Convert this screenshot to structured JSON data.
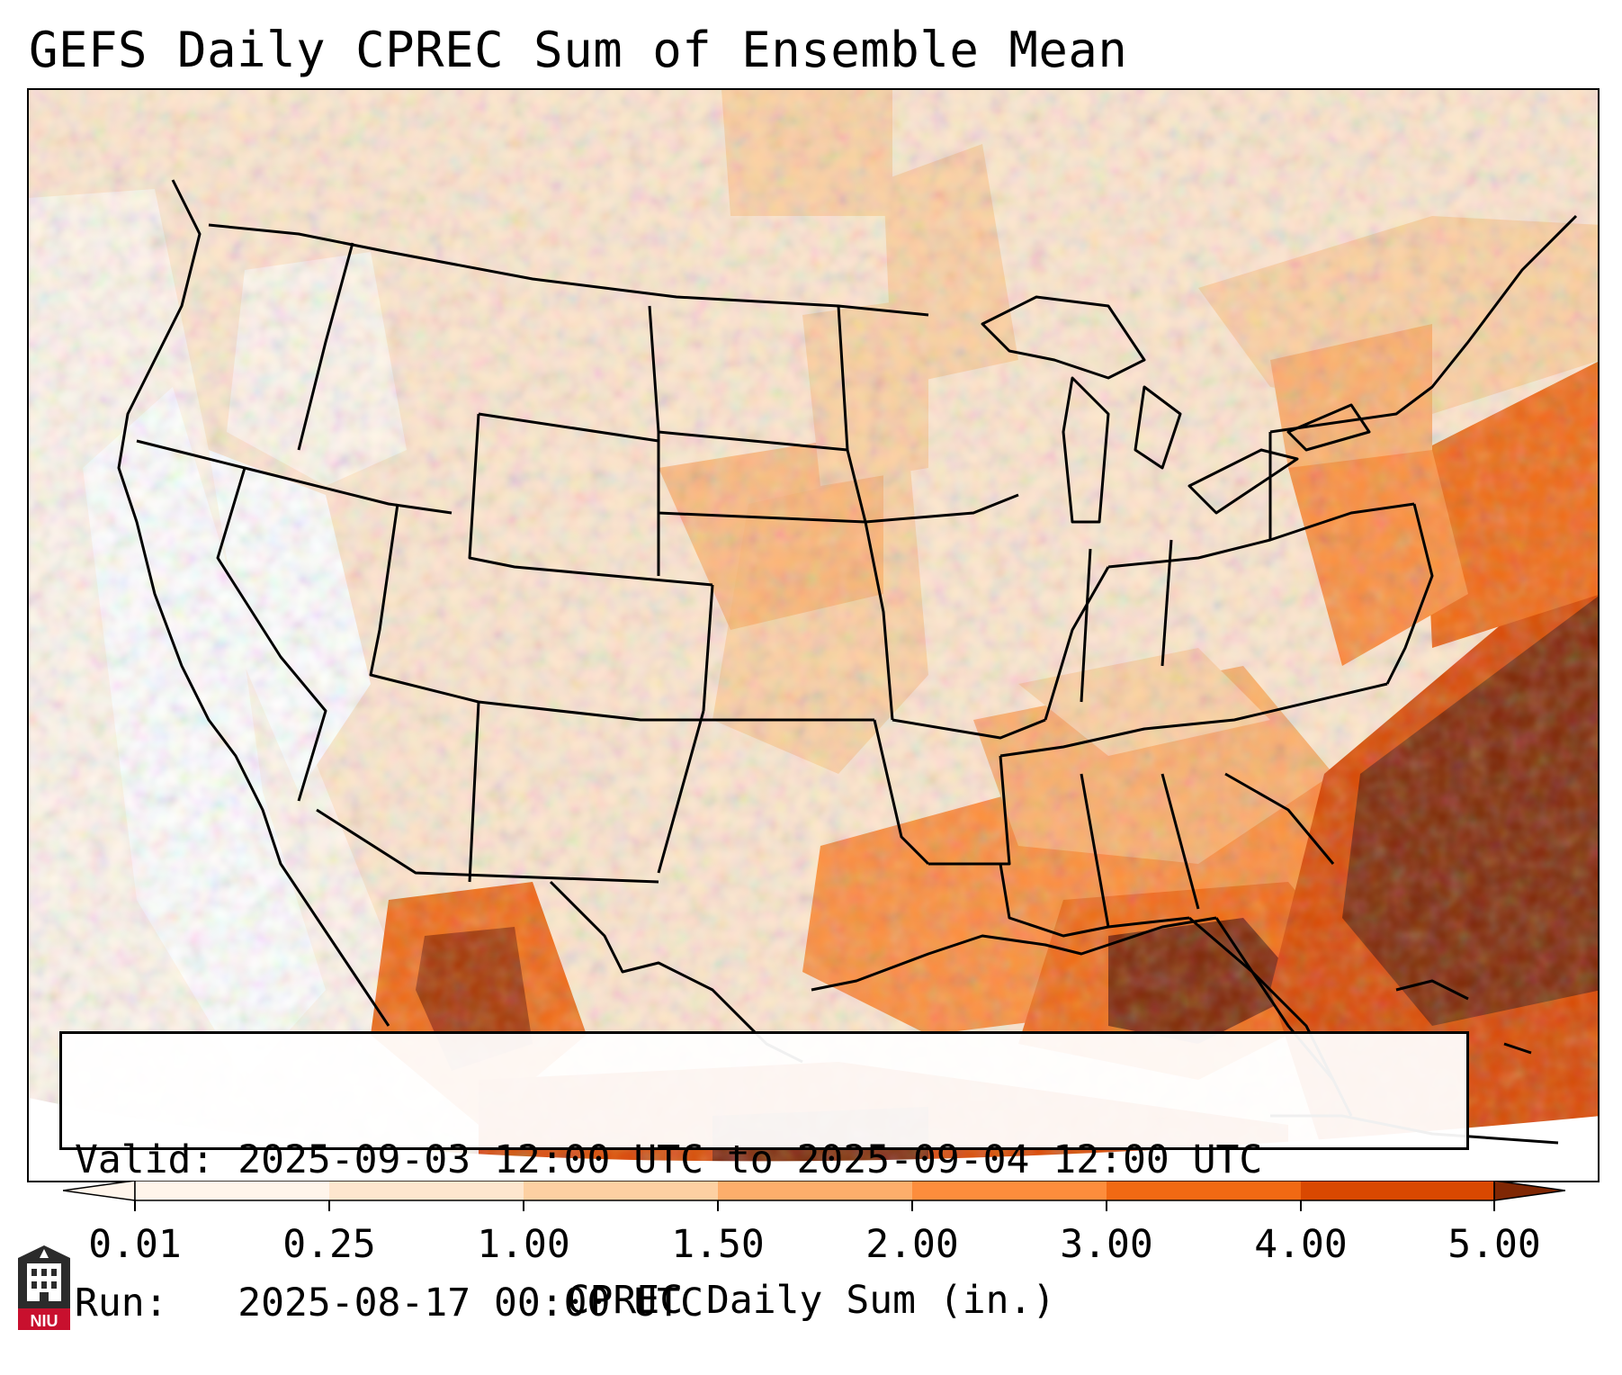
{
  "title": "GEFS Daily CPREC Sum of Ensemble Mean",
  "map": {
    "variable": "CPREC",
    "region": "CONUS",
    "colormap": [
      "#fff5eb",
      "#fee6ce",
      "#fdd0a2",
      "#fdae6b",
      "#fd8d3c",
      "#f16913",
      "#d94801",
      "#a63603",
      "#7f2704"
    ]
  },
  "info": {
    "valid": "Valid: 2025-09-03 12:00 UTC to 2025-09-04 12:00 UTC",
    "run": "Run:   2025-08-17 00:00 UTC"
  },
  "colorbar": {
    "label": "CPREC Daily Sum (in.)",
    "ticks": [
      "0.01",
      "0.25",
      "1.00",
      "1.50",
      "2.00",
      "3.00",
      "4.00",
      "5.00"
    ],
    "extend": "both"
  },
  "logo": {
    "name": "niu-logo",
    "text": "NIU"
  }
}
